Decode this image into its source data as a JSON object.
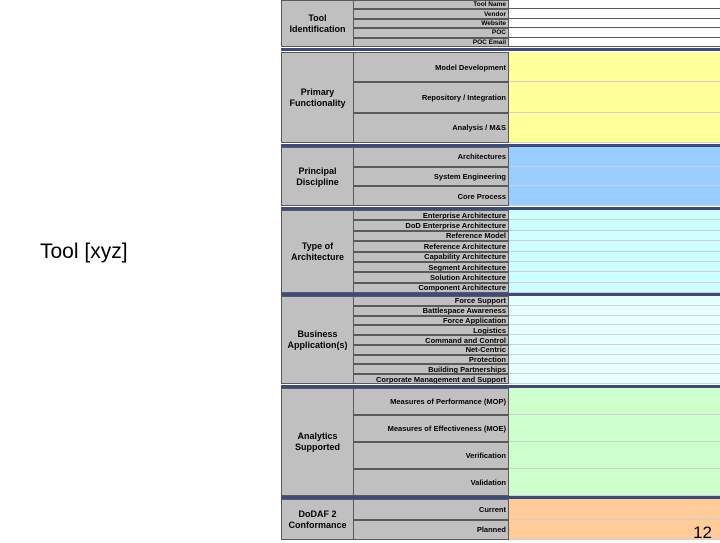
{
  "slide": {
    "title": "Tool [xyz]",
    "page_number": "12"
  },
  "colors": {
    "yellow": "#ffff99",
    "blue": "#99ccff",
    "cyan": "#ccffff",
    "green": "#ccffcc",
    "orange": "#ffcc99",
    "separator": "#3c4a7d",
    "label_gray": "#c0c0c0"
  },
  "sections": [
    {
      "category": "Tool\nIdentification",
      "color": "#ffffff",
      "rows": [
        "Tool Name",
        "Vendor",
        "Website",
        "POC",
        "POC Email"
      ]
    },
    {
      "category": "Primary\nFunctionality",
      "color": "#ffff99",
      "rows": [
        "Model Development",
        "Repository / Integration",
        "Analysis / M&S"
      ]
    },
    {
      "category": "Principal\nDiscipline",
      "color": "#99ccff",
      "rows": [
        "Architectures",
        "System Engineering",
        "Core Process"
      ]
    },
    {
      "category": "Type of\nArchitecture",
      "color": "#ccffff",
      "rows": [
        "Enterprise Architecture",
        "DoD Enterprise Architecture",
        "Reference Model",
        "Reference Architecture",
        "Capability Architecture",
        "Segment Architecture",
        "Solution Architecture",
        "Component Architecture"
      ]
    },
    {
      "category": "Business\nApplication(s)",
      "color": "#e6ffff",
      "rows": [
        "Force Support",
        "Battlespace Awareness",
        "Force Application",
        "Logistics",
        "Command and Control",
        "Net-Centric",
        "Protection",
        "Building Partnerships",
        "Corporate Management and Support"
      ]
    },
    {
      "category": "Analytics\nSupported",
      "color": "#ccffcc",
      "rows": [
        "Measures of Performance (MOP)",
        "Measures of Effectiveness (MOE)",
        "Verification",
        "Validation"
      ]
    },
    {
      "category": "DoDAF 2\nConformance",
      "color": "#ffcc99",
      "rows": [
        "Current",
        "Planned"
      ]
    }
  ]
}
